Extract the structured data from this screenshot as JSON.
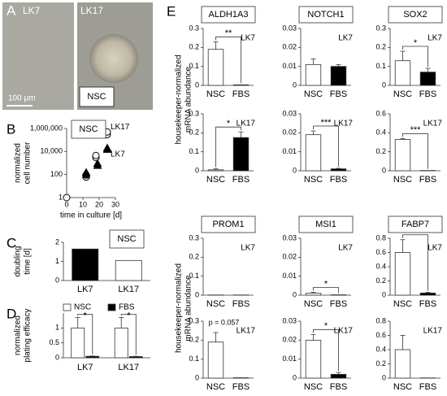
{
  "panel_a": {
    "letter": "A",
    "images": [
      {
        "label": "LK7"
      },
      {
        "label": "LK17",
        "inset": "NSC"
      }
    ],
    "scale_bar": "100 µm"
  },
  "chart_data": [
    {
      "type": "scatter",
      "panel": "B",
      "legend_box": "NSC",
      "ylabel": [
        "normalized",
        "cell number"
      ],
      "xlabel": "time in culture [d]",
      "log_y": true,
      "xlim": [
        0,
        30
      ],
      "xticks": [
        0,
        10,
        20,
        30
      ],
      "ylim": [
        1,
        1000000
      ],
      "yticks": [
        1,
        100,
        {
          "value": 10000,
          "label": "10,000"
        },
        {
          "value": 1000000,
          "label": "1,000,000"
        }
      ],
      "series": [
        {
          "name": "LK17",
          "marker": "circle",
          "color": "#ffffff",
          "x": [
            0,
            12,
            12,
            18,
            18,
            25,
            25
          ],
          "values": [
            1,
            60,
            90,
            3000,
            4500,
            300000,
            500000
          ]
        },
        {
          "name": "LK7",
          "marker": "triangle",
          "color": "#000000",
          "x": [
            12,
            12,
            19,
            19,
            25,
            25
          ],
          "values": [
            100,
            150,
            600,
            900,
            15000,
            20000
          ]
        }
      ]
    },
    {
      "type": "bar",
      "panel": "C",
      "legend_box": "NSC",
      "ylabel": [
        "doubling",
        "time [d]"
      ],
      "categories": [
        "LK7",
        "LK17"
      ],
      "values": [
        1.65,
        1.05
      ],
      "colors": [
        "#000000",
        "#ffffff"
      ],
      "ylim": [
        0,
        2
      ],
      "yticks": [
        0,
        1,
        2
      ]
    },
    {
      "type": "grouped_bar",
      "panel": "D",
      "ylabel": [
        "normalized",
        "plating efficacy"
      ],
      "categories": [
        "LK7",
        "LK17"
      ],
      "series": [
        {
          "name": "NSC",
          "color": "#ffffff",
          "values": [
            1.0,
            1.0
          ],
          "errors": [
            0.35,
            0.35
          ]
        },
        {
          "name": "FBS",
          "color": "#000000",
          "values": [
            0.05,
            0.04
          ],
          "errors": [
            0.01,
            0.01
          ]
        }
      ],
      "ylim": [
        0,
        1.5
      ],
      "yticks": [
        0,
        0.5,
        1
      ],
      "annotations": [
        "*",
        "*"
      ]
    },
    {
      "type": "bar",
      "panel": "E",
      "title": "ALDH1A3",
      "line": "LK7",
      "ylabel": [
        "housekeeper-normalized",
        "mRNA abundance"
      ],
      "categories": [
        "NSC",
        "FBS"
      ],
      "values": [
        0.19,
        0.003
      ],
      "errors": [
        0.04,
        null
      ],
      "colors": [
        "#ffffff",
        "#000000"
      ],
      "ylim": [
        0,
        0.3
      ],
      "yticks": [
        0,
        0.1,
        0.2,
        0.3
      ],
      "annotation": "**"
    },
    {
      "type": "bar",
      "title": "NOTCH1",
      "line": "LK7",
      "categories": [
        "NSC",
        "FBS"
      ],
      "values": [
        0.011,
        0.01
      ],
      "errors": [
        0.003,
        0.001
      ],
      "colors": [
        "#ffffff",
        "#000000"
      ],
      "ylim": [
        0,
        0.03
      ],
      "yticks": [
        0,
        0.01,
        0.02,
        0.03
      ]
    },
    {
      "type": "bar",
      "title": "SOX2",
      "line": "LK7",
      "categories": [
        "NSC",
        "FBS"
      ],
      "values": [
        0.13,
        0.07
      ],
      "errors": [
        0.05,
        0.02
      ],
      "colors": [
        "#ffffff",
        "#000000"
      ],
      "ylim": [
        0,
        0.3
      ],
      "yticks": [
        0,
        0.1,
        0.2,
        0.3
      ],
      "annotation": "*"
    },
    {
      "type": "bar",
      "line": "LK17",
      "categories": [
        "NSC",
        "FBS"
      ],
      "values": [
        0.005,
        0.175
      ],
      "errors": [
        0.005,
        0.03
      ],
      "colors": [
        "#ffffff",
        "#000000"
      ],
      "ylim": [
        0,
        0.3
      ],
      "yticks": [
        0,
        0.1,
        0.2,
        0.3
      ],
      "annotation": "*"
    },
    {
      "type": "bar",
      "line": "LK17",
      "categories": [
        "NSC",
        "FBS"
      ],
      "values": [
        0.019,
        0.001
      ],
      "errors": [
        0.002,
        0.0003
      ],
      "colors": [
        "#ffffff",
        "#000000"
      ],
      "ylim": [
        0,
        0.03
      ],
      "yticks": [
        0,
        0.01,
        0.02,
        0.03
      ],
      "annotation": "***"
    },
    {
      "type": "bar",
      "line": "LK17",
      "categories": [
        "NSC",
        "FBS"
      ],
      "values": [
        0.33,
        0.003
      ],
      "errors": [
        0.01,
        null
      ],
      "colors": [
        "#ffffff",
        "#000000"
      ],
      "ylim": [
        0,
        0.6
      ],
      "yticks": [
        0,
        0.2,
        0.4,
        0.6
      ],
      "annotation": "***"
    },
    {
      "type": "bar",
      "title": "PROM1",
      "line": "LK7",
      "ylabel": [
        "housekeeper-normalized",
        "mRNA abundance"
      ],
      "categories": [
        "NSC",
        "FBS"
      ],
      "values": [
        0.001,
        0.001
      ],
      "errors": [
        null,
        null
      ],
      "colors": [
        "#ffffff",
        "#000000"
      ],
      "ylim": [
        0,
        0.3
      ],
      "yticks": [
        0,
        0.1,
        0.2,
        0.3
      ]
    },
    {
      "type": "bar",
      "title": "MSI1",
      "line": "LK7",
      "categories": [
        "NSC",
        "FBS"
      ],
      "values": [
        0.001,
        0.0002
      ],
      "errors": [
        0.0005,
        null
      ],
      "colors": [
        "#ffffff",
        "#000000"
      ],
      "ylim": [
        0,
        0.03
      ],
      "yticks": [
        0,
        0.01,
        0.02,
        0.03
      ],
      "annotation": "*"
    },
    {
      "type": "bar",
      "title": "FABP7",
      "line": "LK7",
      "categories": [
        "NSC",
        "FBS"
      ],
      "values": [
        0.6,
        0.03
      ],
      "errors": [
        0.18,
        0.01
      ],
      "colors": [
        "#ffffff",
        "#000000"
      ],
      "ylim": [
        0,
        0.8
      ],
      "yticks": [
        0,
        0.2,
        0.4,
        0.6,
        0.8
      ],
      "annotation": "**"
    },
    {
      "type": "bar",
      "line": "LK17",
      "categories": [
        "NSC",
        "FBS"
      ],
      "values": [
        0.19,
        0.002
      ],
      "errors": [
        0.05,
        null
      ],
      "colors": [
        "#ffffff",
        "#000000"
      ],
      "ylim": [
        0,
        0.3
      ],
      "yticks": [
        0,
        0.1,
        0.2,
        0.3
      ],
      "annotation": "p = 0.057"
    },
    {
      "type": "bar",
      "line": "LK17",
      "categories": [
        "NSC",
        "FBS"
      ],
      "values": [
        0.02,
        0.002
      ],
      "errors": [
        0.003,
        0.001
      ],
      "colors": [
        "#ffffff",
        "#000000"
      ],
      "ylim": [
        0,
        0.03
      ],
      "yticks": [
        0,
        0.01,
        0.02,
        0.03
      ],
      "annotation": "*"
    },
    {
      "type": "bar",
      "line": "LK17",
      "categories": [
        "NSC",
        "FBS"
      ],
      "values": [
        0.4,
        0.003
      ],
      "errors": [
        0.2,
        null
      ],
      "colors": [
        "#ffffff",
        "#000000"
      ],
      "ylim": [
        0,
        0.8
      ],
      "yticks": [
        0,
        0.2,
        0.4,
        0.6,
        0.8
      ]
    }
  ]
}
